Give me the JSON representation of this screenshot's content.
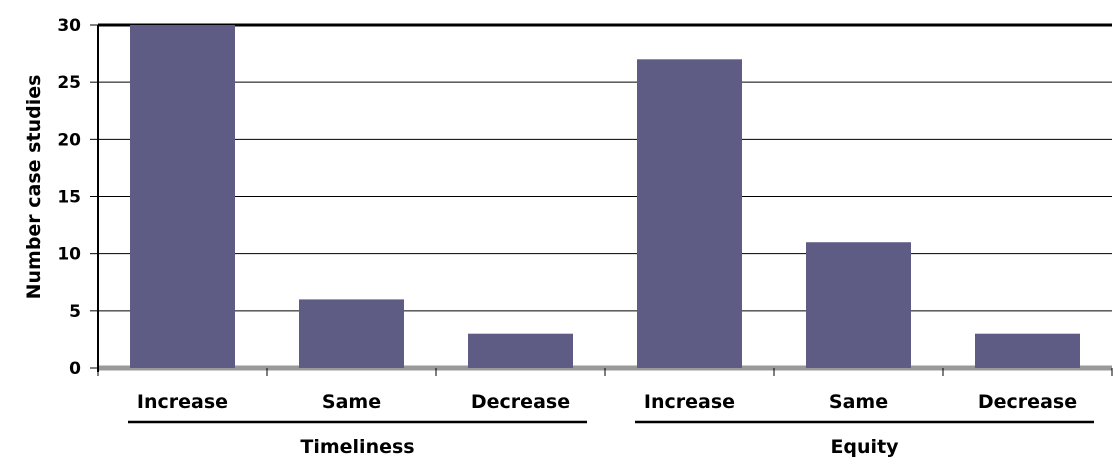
{
  "chart_data": {
    "type": "bar",
    "title": "",
    "xlabel": "",
    "ylabel": "Number case studies",
    "ylim": [
      0,
      30
    ],
    "yticks": [
      0,
      5,
      10,
      15,
      20,
      25,
      30
    ],
    "grid": true,
    "legend": "none",
    "bar_color": "#5e5b85",
    "groups": [
      {
        "label": "Timeliness",
        "categories": [
          "Increase",
          "Same",
          "Decrease"
        ],
        "values": [
          30,
          6,
          3
        ]
      },
      {
        "label": "Equity",
        "categories": [
          "Increase",
          "Same",
          "Decrease"
        ],
        "values": [
          27,
          11,
          3
        ]
      }
    ]
  }
}
